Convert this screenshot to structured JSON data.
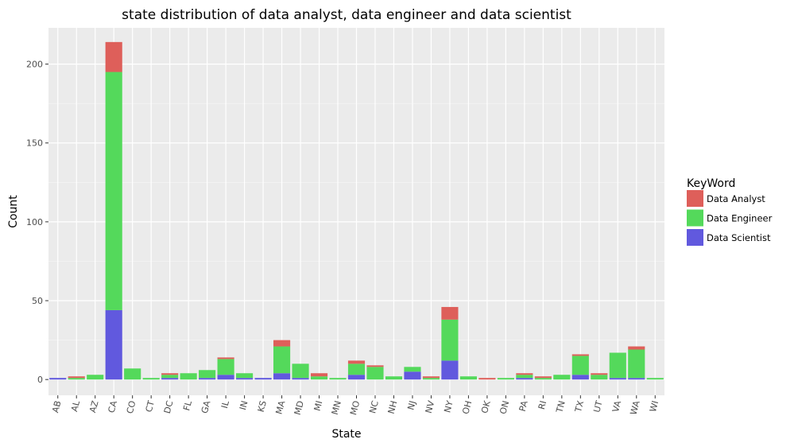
{
  "chart_data": {
    "type": "bar",
    "stacked": true,
    "title": "state distribution of data analyst, data engineer and data scientist",
    "xlabel": "State",
    "ylabel": "Count",
    "ylim": [
      -10,
      223
    ],
    "yticks": [
      0,
      50,
      100,
      150,
      200
    ],
    "grid": true,
    "legend_position": "right",
    "legend_title": "KeyWord",
    "categories": [
      "AB",
      "AL",
      "AZ",
      "CA",
      "CO",
      "CT",
      "DC",
      "FL",
      "GA",
      "IL",
      "IN",
      "KS",
      "MA",
      "MD",
      "MI",
      "MN",
      "MO",
      "NC",
      "NH",
      "NJ",
      "NV",
      "NY",
      "OH",
      "OK",
      "ON",
      "PA",
      "RI",
      "TN",
      "TX",
      "UT",
      "VA",
      "WA",
      "WI"
    ],
    "series": [
      {
        "name": "Data Scientist",
        "color": "#6159de",
        "values": [
          1,
          0,
          0,
          44,
          0,
          0,
          1,
          0,
          1,
          3,
          1,
          1,
          4,
          1,
          0,
          0,
          3,
          0,
          0,
          5,
          0,
          12,
          0,
          0,
          0,
          1,
          0,
          0,
          3,
          0,
          1,
          1,
          0
        ]
      },
      {
        "name": "Data Engineer",
        "color": "#54d95b",
        "values": [
          0,
          1,
          3,
          151,
          7,
          1,
          2,
          4,
          5,
          10,
          3,
          0,
          17,
          9,
          2,
          1,
          7,
          8,
          2,
          3,
          1,
          26,
          2,
          0,
          1,
          2,
          1,
          3,
          12,
          3,
          16,
          18,
          1
        ]
      },
      {
        "name": "Data Analyst",
        "color": "#de5f5a",
        "values": [
          0,
          1,
          0,
          19,
          0,
          0,
          1,
          0,
          0,
          1,
          0,
          0,
          4,
          0,
          2,
          0,
          2,
          1,
          0,
          0,
          1,
          8,
          0,
          1,
          0,
          1,
          1,
          0,
          1,
          1,
          0,
          2,
          0
        ]
      }
    ]
  }
}
